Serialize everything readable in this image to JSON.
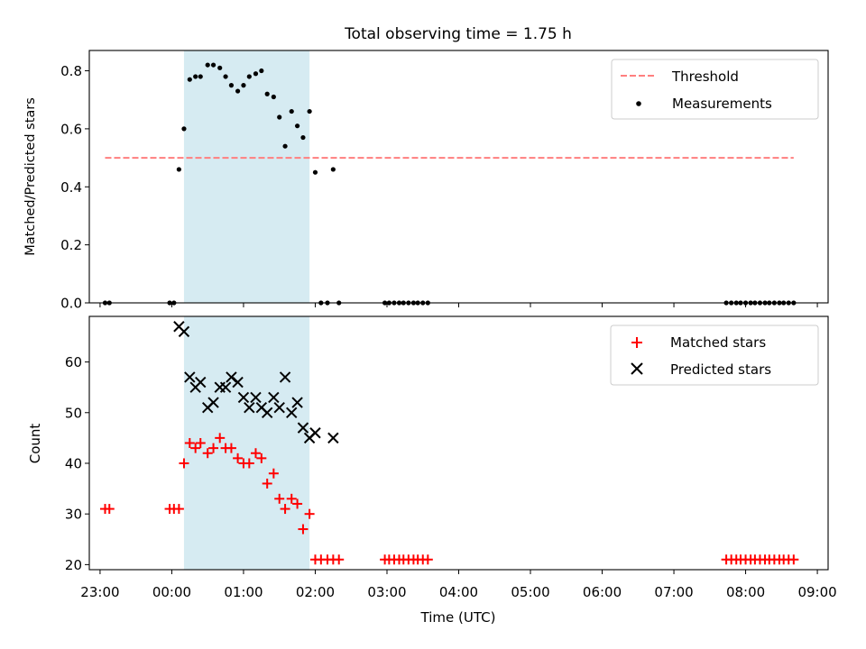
{
  "chart_data": [
    {
      "type": "scatter",
      "title": "Total observing time = 1.75 h",
      "xlabel": "",
      "ylabel": "Matched/Predicted stars",
      "xlim": [
        -1.15,
        9.15
      ],
      "ylim": [
        0,
        0.87
      ],
      "yticks": [
        "0.0",
        "0.2",
        "0.4",
        "0.6",
        "0.8"
      ],
      "yticks_values": [
        0,
        0.2,
        0.4,
        0.6,
        0.8
      ],
      "legend_position": "upper right",
      "shaded_interval": {
        "x_start": 0.17,
        "x_end": 1.92,
        "color": "#add8e6"
      },
      "series": [
        {
          "name": "Threshold",
          "kind": "dashed-line",
          "color": "#ff7f7f",
          "x": [
            -0.93,
            8.67
          ],
          "y": [
            0.5,
            0.5
          ]
        },
        {
          "name": "Measurements",
          "kind": "dots",
          "color": "#000000",
          "x": [
            -0.93,
            -0.87,
            -0.03,
            0.03,
            0.1,
            0.17,
            0.25,
            0.33,
            0.4,
            0.5,
            0.58,
            0.67,
            0.75,
            0.83,
            0.92,
            1.0,
            1.08,
            1.17,
            1.25,
            1.33,
            1.42,
            1.5,
            1.58,
            1.67,
            1.75,
            1.83,
            1.92,
            2.0,
            2.08,
            2.17,
            2.25,
            2.33,
            2.97,
            3.03,
            3.1,
            3.17,
            3.23,
            3.3,
            3.37,
            3.43,
            3.5,
            3.57,
            7.73,
            7.8,
            7.87,
            7.93,
            8.0,
            8.07,
            8.13,
            8.2,
            8.27,
            8.33,
            8.4,
            8.47,
            8.53,
            8.6,
            8.67
          ],
          "y": [
            0,
            0,
            0,
            0,
            0.46,
            0.6,
            0.77,
            0.78,
            0.78,
            0.82,
            0.82,
            0.81,
            0.78,
            0.75,
            0.73,
            0.75,
            0.78,
            0.79,
            0.8,
            0.72,
            0.71,
            0.64,
            0.54,
            0.66,
            0.61,
            0.57,
            0.66,
            0.45,
            0,
            0,
            0.46,
            0,
            0,
            0,
            0,
            0,
            0,
            0,
            0,
            0,
            0,
            0,
            0,
            0,
            0,
            0,
            0,
            0,
            0,
            0,
            0,
            0,
            0,
            0,
            0,
            0,
            0
          ]
        }
      ]
    },
    {
      "type": "scatter",
      "title": "",
      "xlabel": "Time (UTC)",
      "ylabel": "Count",
      "xlim": [
        -1.15,
        9.15
      ],
      "ylim": [
        19,
        69
      ],
      "xticks": [
        "23:00",
        "00:00",
        "01:00",
        "02:00",
        "03:00",
        "04:00",
        "05:00",
        "06:00",
        "07:00",
        "08:00",
        "09:00"
      ],
      "xticks_values": [
        -1,
        0,
        1,
        2,
        3,
        4,
        5,
        6,
        7,
        8,
        9
      ],
      "yticks": [
        "20",
        "30",
        "40",
        "50",
        "60"
      ],
      "yticks_values": [
        20,
        30,
        40,
        50,
        60
      ],
      "legend_position": "upper right",
      "shaded_interval": {
        "x_start": 0.17,
        "x_end": 1.92,
        "color": "#add8e6"
      },
      "series": [
        {
          "name": "Matched stars",
          "kind": "plus",
          "color": "#ff0000",
          "x": [
            -0.93,
            -0.87,
            -0.03,
            0.03,
            0.1,
            0.17,
            0.25,
            0.33,
            0.4,
            0.5,
            0.58,
            0.67,
            0.75,
            0.83,
            0.92,
            1.0,
            1.08,
            1.17,
            1.25,
            1.33,
            1.42,
            1.5,
            1.58,
            1.67,
            1.75,
            1.83,
            1.92,
            2.0,
            2.08,
            2.17,
            2.25,
            2.33,
            2.97,
            3.03,
            3.1,
            3.17,
            3.23,
            3.3,
            3.37,
            3.43,
            3.5,
            3.57,
            7.73,
            7.8,
            7.87,
            7.93,
            8.0,
            8.07,
            8.13,
            8.2,
            8.27,
            8.33,
            8.4,
            8.47,
            8.53,
            8.6,
            8.67
          ],
          "y": [
            31,
            31,
            31,
            31,
            31,
            40,
            44,
            43,
            44,
            42,
            43,
            45,
            43,
            43,
            41,
            40,
            40,
            42,
            41,
            36,
            38,
            33,
            31,
            33,
            32,
            27,
            30,
            21,
            21,
            21,
            21,
            21,
            21,
            21,
            21,
            21,
            21,
            21,
            21,
            21,
            21,
            21,
            21,
            21,
            21,
            21,
            21,
            21,
            21,
            21,
            21,
            21,
            21,
            21,
            21,
            21,
            21
          ]
        },
        {
          "name": "Predicted stars",
          "kind": "x",
          "color": "#000000",
          "x": [
            0.1,
            0.17,
            0.25,
            0.33,
            0.4,
            0.5,
            0.58,
            0.67,
            0.75,
            0.83,
            0.92,
            1.0,
            1.08,
            1.17,
            1.25,
            1.33,
            1.42,
            1.5,
            1.58,
            1.67,
            1.75,
            1.83,
            1.92,
            2.0,
            2.25
          ],
          "y": [
            67,
            66,
            57,
            55,
            56,
            51,
            52,
            55,
            55,
            57,
            56,
            53,
            51,
            53,
            51,
            50,
            53,
            51,
            57,
            50,
            52,
            47,
            45,
            46,
            45
          ]
        }
      ]
    }
  ]
}
